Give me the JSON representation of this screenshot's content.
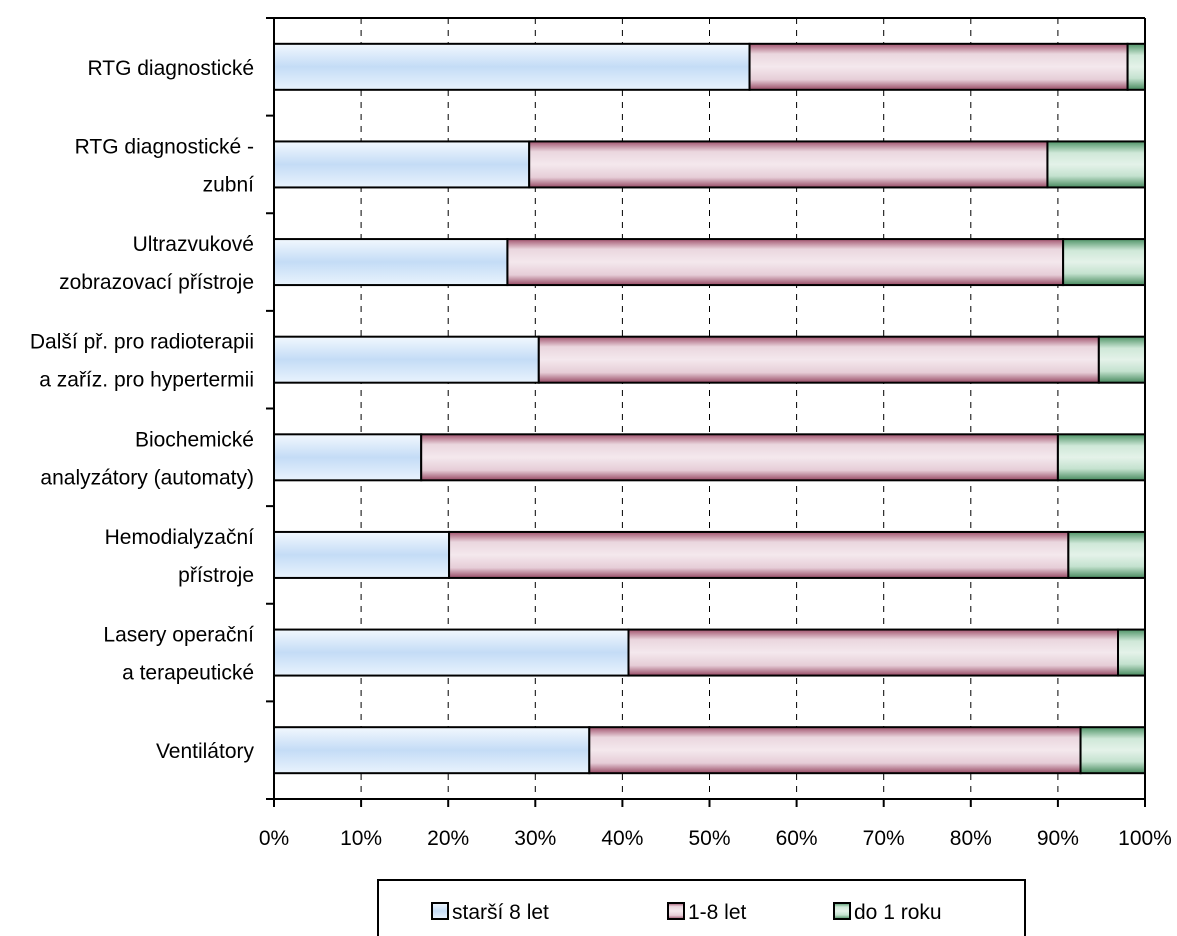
{
  "chart_data": {
    "type": "bar",
    "orientation": "horizontal",
    "stacked": true,
    "percent": true,
    "categories": [
      [
        "RTG diagnostické"
      ],
      [
        "RTG diagnostické -",
        "zubní"
      ],
      [
        "Ultrazvukové",
        "zobrazovací přístroje"
      ],
      [
        "Další př. pro radioterapii",
        "a zaříz. pro hypertermii"
      ],
      [
        "Biochemické",
        "analyzátory (automaty)"
      ],
      [
        "Hemodialyzační",
        "přístroje"
      ],
      [
        "Lasery operační",
        "a terapeutické"
      ],
      [
        "Ventilátory"
      ]
    ],
    "series": [
      {
        "name": "starší 8 let",
        "values": [
          54.6,
          29.3,
          26.8,
          30.4,
          16.9,
          20.1,
          40.7,
          36.2
        ],
        "color": "#cfe6fb"
      },
      {
        "name": "1-8 let",
        "values": [
          43.4,
          59.5,
          63.8,
          64.3,
          73.1,
          71.1,
          56.2,
          56.4
        ],
        "color": "#d9b6c4"
      },
      {
        "name": "do 1 roku",
        "values": [
          2.0,
          11.2,
          9.4,
          5.3,
          10.0,
          8.8,
          3.1,
          7.4
        ],
        "color": "#a8d4b8"
      }
    ],
    "xlim": [
      0,
      100
    ],
    "xticks": [
      "0%",
      "10%",
      "20%",
      "30%",
      "40%",
      "50%",
      "60%",
      "70%",
      "80%",
      "90%",
      "100%"
    ],
    "grid": "vertical dashed",
    "legend_position": "bottom"
  }
}
